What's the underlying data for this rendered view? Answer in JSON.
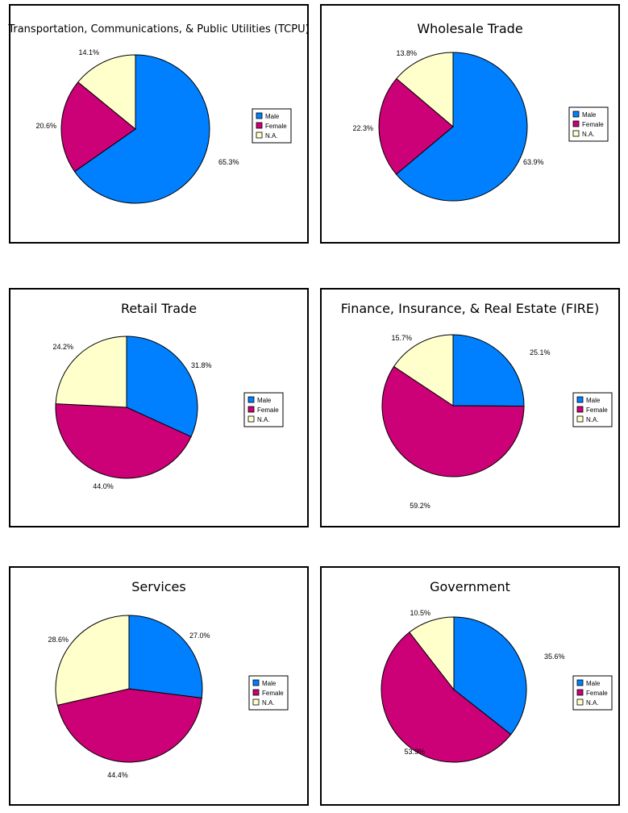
{
  "legend": {
    "labels": [
      "Male",
      "Female",
      "N.A."
    ],
    "colors": [
      "#0080ff",
      "#cc0077",
      "#ffffcc"
    ]
  },
  "chart_data": [
    {
      "type": "pie",
      "title": "Transportation, Communications, & Public Utilities (TCPU)",
      "categories": [
        "Male",
        "Female",
        "N.A."
      ],
      "values": [
        65.3,
        20.6,
        14.1
      ],
      "labels": [
        "65.3%",
        "20.6%",
        "14.1%"
      ],
      "legend_position": "right"
    },
    {
      "type": "pie",
      "title": "Wholesale Trade",
      "categories": [
        "Male",
        "Female",
        "N.A."
      ],
      "values": [
        63.9,
        22.3,
        13.8
      ],
      "labels": [
        "63.9%",
        "22.3%",
        "13.8%"
      ],
      "legend_position": "right"
    },
    {
      "type": "pie",
      "title": "Retail Trade",
      "categories": [
        "Male",
        "Female",
        "N.A."
      ],
      "values": [
        31.8,
        44.0,
        24.2
      ],
      "labels": [
        "31.8%",
        "44.0%",
        "24.2%"
      ],
      "legend_position": "right"
    },
    {
      "type": "pie",
      "title": "Finance, Insurance, & Real Estate (FIRE)",
      "categories": [
        "Male",
        "Female",
        "N.A."
      ],
      "values": [
        25.1,
        59.2,
        15.7
      ],
      "labels": [
        "25.1%",
        "59.2%",
        "15.7%"
      ],
      "legend_position": "right"
    },
    {
      "type": "pie",
      "title": "Services",
      "categories": [
        "Male",
        "Female",
        "N.A."
      ],
      "values": [
        27.0,
        44.4,
        28.6
      ],
      "labels": [
        "27.0%",
        "44.4%",
        "28.6%"
      ],
      "legend_position": "right"
    },
    {
      "type": "pie",
      "title": "Government",
      "categories": [
        "Male",
        "Female",
        "N.A."
      ],
      "values": [
        35.6,
        53.9,
        10.5
      ],
      "labels": [
        "35.6%",
        "53.9%",
        "10.5%"
      ],
      "legend_position": "right"
    }
  ]
}
